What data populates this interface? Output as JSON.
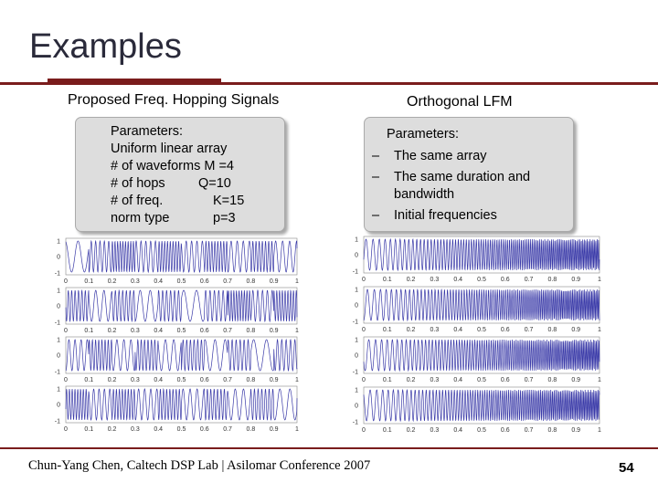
{
  "slide": {
    "title": "Examples",
    "left_heading": "Proposed Freq. Hopping Signals",
    "right_heading": "Orthogonal LFM",
    "left_box": {
      "label": "Parameters:",
      "rows": [
        {
          "name": "Uniform linear array",
          "value": ""
        },
        {
          "name": "# of waveforms M =4",
          "value": ""
        },
        {
          "name": "# of hops",
          "value": "Q=10"
        },
        {
          "name": "# of freq.",
          "value": "K=15"
        },
        {
          "name": "norm type",
          "value": "p=3"
        }
      ]
    },
    "right_box": {
      "label": "Parameters:",
      "bullets": [
        {
          "dash": "–",
          "text": "The same array"
        },
        {
          "dash": "–",
          "text": "The same duration and bandwidth"
        },
        {
          "dash": "–",
          "text": "Initial frequencies"
        }
      ]
    },
    "footer": "Chun-Yang Chen, Caltech DSP Lab | Asilomar Conference 2007",
    "page_number": "54"
  },
  "plots": {
    "x_ticks": [
      "0",
      "0.1",
      "0.2",
      "0.3",
      "0.4",
      "0.5",
      "0.6",
      "0.7",
      "0.8",
      "0.9",
      "1"
    ],
    "y_ticks": [
      "1",
      "0",
      "-1"
    ],
    "waveform_color": "#3a3aa8"
  }
}
